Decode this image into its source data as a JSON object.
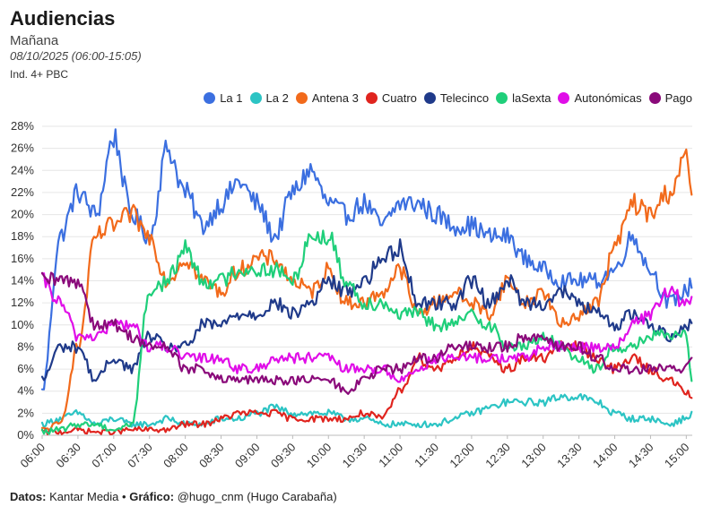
{
  "header": {
    "title": "Audiencias",
    "subtitle": "Mañana",
    "date_range": "08/10/2025 (06:00-15:05)",
    "target": "Ind. 4+ PBC"
  },
  "footer": {
    "data_label": "Datos:",
    "data_value": "Kantar Media",
    "separator": "•",
    "chart_label": "Gráfico:",
    "chart_value": "@hugo_cnm (Hugo Carabaña)"
  },
  "chart_data": {
    "type": "line",
    "title": "Audiencias",
    "xlabel": "",
    "ylabel": "",
    "ylim": [
      0,
      28
    ],
    "y_ticks": [
      "0%",
      "2%",
      "4%",
      "6%",
      "8%",
      "10%",
      "12%",
      "14%",
      "16%",
      "18%",
      "20%",
      "22%",
      "24%",
      "26%",
      "28%"
    ],
    "x_ticks": [
      "06:00",
      "06:30",
      "07:00",
      "07:30",
      "08:00",
      "08:30",
      "09:00",
      "09:30",
      "10:00",
      "10:30",
      "11:00",
      "11:30",
      "12:00",
      "12:30",
      "13:00",
      "13:30",
      "14:00",
      "14:30",
      "15:00"
    ],
    "x_range_minutes": [
      0,
      545
    ],
    "legend_position": "top-right",
    "x": [
      0,
      15,
      30,
      45,
      60,
      75,
      90,
      105,
      120,
      135,
      150,
      165,
      180,
      195,
      210,
      225,
      240,
      255,
      270,
      285,
      300,
      315,
      330,
      345,
      360,
      375,
      390,
      405,
      420,
      435,
      450,
      465,
      480,
      495,
      510,
      525,
      540,
      545
    ],
    "series": [
      {
        "name": "La 1",
        "color": "#3b6fe0",
        "values": [
          4,
          18,
          22,
          20,
          27,
          20,
          18,
          26,
          22,
          19,
          21,
          23,
          21,
          18,
          22,
          24,
          21,
          20,
          21,
          19,
          21,
          21,
          20,
          19,
          19,
          18,
          18,
          16,
          15,
          14,
          14,
          14,
          15,
          18,
          15,
          12,
          13,
          14
        ]
      },
      {
        "name": "La 2",
        "color": "#2cc4c4",
        "values": [
          1,
          1.5,
          2,
          1,
          1.5,
          1,
          1,
          1.5,
          1,
          1,
          1.5,
          1.5,
          2,
          2.5,
          2,
          2,
          2,
          1.5,
          1.5,
          1,
          1,
          1,
          1,
          1.5,
          2,
          2.5,
          3,
          3,
          3,
          3.5,
          3.5,
          3,
          2,
          1.5,
          1.5,
          1,
          1.5,
          2
        ]
      },
      {
        "name": "Antena 3",
        "color": "#f26a1b",
        "values": [
          0.5,
          1,
          8,
          18,
          19,
          20,
          18,
          14,
          16,
          14,
          13,
          15,
          16,
          16,
          14,
          13,
          15,
          12,
          12,
          13,
          15,
          11,
          12,
          13,
          12,
          11,
          14,
          12,
          13,
          10,
          11,
          12,
          17,
          21,
          20,
          22,
          25,
          22
        ]
      },
      {
        "name": "Cuatro",
        "color": "#e0241e",
        "values": [
          0.3,
          0.3,
          0.5,
          0.3,
          0.3,
          0.5,
          0.5,
          0.5,
          1,
          1,
          1.5,
          2,
          2,
          2,
          1.5,
          1.5,
          1.5,
          1.5,
          2,
          1.5,
          4,
          7,
          6,
          7,
          8,
          7,
          6,
          7,
          7,
          8,
          8,
          7,
          6,
          7,
          6,
          5,
          4,
          3
        ]
      },
      {
        "name": "Telecinco",
        "color": "#1f3a8a",
        "values": [
          5,
          8,
          8,
          5,
          7,
          6,
          9,
          8,
          8,
          10,
          10,
          11,
          11,
          12,
          11,
          12,
          14,
          13,
          14,
          16,
          17,
          12,
          12,
          12,
          14,
          12,
          14,
          12,
          12,
          13,
          12,
          11,
          10,
          11,
          10,
          9,
          10,
          10
        ]
      },
      {
        "name": "laSexta",
        "color": "#1fcf7a",
        "values": [
          0.3,
          0.5,
          1,
          1,
          0.5,
          1,
          13,
          14,
          17,
          14,
          14,
          15,
          15,
          15,
          14,
          18,
          18,
          14,
          12,
          12,
          11,
          11,
          10,
          10,
          11,
          10,
          8,
          8,
          9,
          8,
          7,
          6,
          8,
          8,
          9,
          9,
          9,
          5
        ]
      },
      {
        "name": "Autonómicas",
        "color": "#e00ee8",
        "values": [
          14,
          12,
          9,
          9,
          10,
          10,
          8,
          8,
          7,
          7,
          7,
          6,
          6,
          7,
          7,
          7,
          7,
          6,
          6,
          6,
          5,
          6,
          7,
          7,
          7,
          7,
          7,
          7,
          8,
          8,
          8,
          8,
          8,
          10,
          11,
          13,
          12,
          12
        ]
      },
      {
        "name": "Pago",
        "color": "#8a0a7a",
        "values": [
          14,
          14,
          14,
          10,
          10,
          9,
          8,
          8,
          6,
          6,
          5,
          5,
          5,
          5,
          5,
          5,
          5,
          4,
          5,
          6,
          6,
          7,
          7,
          8,
          8,
          8,
          8,
          9,
          9,
          8,
          8,
          7,
          6,
          6,
          6,
          6,
          6,
          7
        ]
      }
    ]
  }
}
